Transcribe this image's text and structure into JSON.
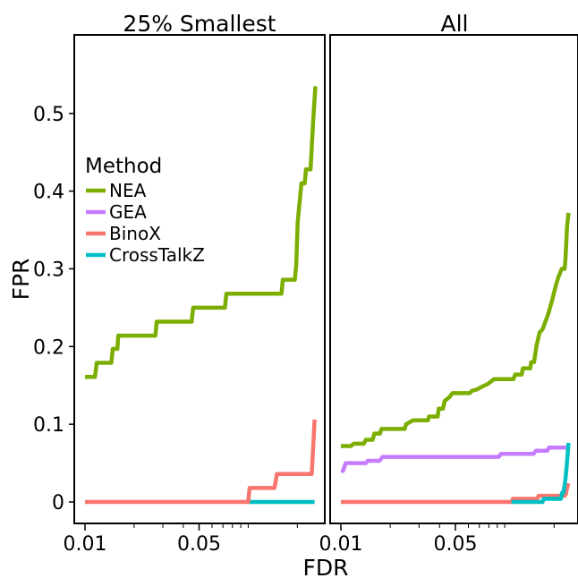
{
  "chart_data": {
    "type": "line",
    "xlabel": "FDR",
    "ylabel": "FPR",
    "x_scale": "log",
    "x_ticks": [
      0.01,
      0.05
    ],
    "x_tick_labels": [
      "0.01",
      "0.05"
    ],
    "y_ticks": [
      0,
      0.1,
      0.2,
      0.3,
      0.4,
      0.5
    ],
    "y_tick_labels": [
      "0",
      "0.1",
      "0.2",
      "0.3",
      "0.4",
      "0.5"
    ],
    "xlim": [
      0.009,
      0.37
    ],
    "ylim": [
      -0.025,
      0.565
    ],
    "grid": false,
    "legend": {
      "title": "Method",
      "placement": "left panel, middle-left",
      "entries": [
        "NEA",
        "GEA",
        "BinoX",
        "CrossTalkZ"
      ]
    },
    "colors": {
      "NEA": "#7CAE00",
      "GEA": "#C77CFF",
      "BinoX": "#F8766D",
      "CrossTalkZ": "#00BFC4"
    },
    "panels": [
      {
        "title": "25% Smallest",
        "series": [
          {
            "name": "NEA",
            "points": [
              [
                0.01,
                0.161
              ],
              [
                0.0115,
                0.161
              ],
              [
                0.0118,
                0.179
              ],
              [
                0.0145,
                0.179
              ],
              [
                0.0148,
                0.197
              ],
              [
                0.0158,
                0.197
              ],
              [
                0.016,
                0.214
              ],
              [
                0.027,
                0.214
              ],
              [
                0.0275,
                0.232
              ],
              [
                0.045,
                0.232
              ],
              [
                0.046,
                0.25
              ],
              [
                0.072,
                0.25
              ],
              [
                0.0735,
                0.268
              ],
              [
                0.16,
                0.268
              ],
              [
                0.163,
                0.286
              ],
              [
                0.193,
                0.286
              ],
              [
                0.197,
                0.305
              ],
              [
                0.201,
                0.36
              ],
              [
                0.212,
                0.41
              ],
              [
                0.222,
                0.41
              ],
              [
                0.226,
                0.428
              ],
              [
                0.241,
                0.428
              ],
              [
                0.25,
                0.49
              ],
              [
                0.258,
                0.535
              ]
            ]
          },
          {
            "name": "CrossTalkZ",
            "points": [
              [
                0.1,
                0
              ],
              [
                0.255,
                0
              ]
            ]
          },
          {
            "name": "BinoX",
            "points": [
              [
                0.01,
                0
              ],
              [
                0.1,
                0
              ],
              [
                0.102,
                0.018
              ],
              [
                0.145,
                0.018
              ],
              [
                0.15,
                0.036
              ],
              [
                0.245,
                0.036
              ],
              [
                0.25,
                0.07
              ],
              [
                0.255,
                0.106
              ]
            ]
          }
        ]
      },
      {
        "title": "All",
        "series": [
          {
            "name": "NEA",
            "points": [
              [
                0.01,
                0.072
              ],
              [
                0.0115,
                0.072
              ],
              [
                0.012,
                0.075
              ],
              [
                0.0138,
                0.075
              ],
              [
                0.0142,
                0.08
              ],
              [
                0.0156,
                0.08
              ],
              [
                0.016,
                0.088
              ],
              [
                0.0173,
                0.088
              ],
              [
                0.0177,
                0.094
              ],
              [
                0.0245,
                0.094
              ],
              [
                0.025,
                0.1
              ],
              [
                0.0275,
                0.105
              ],
              [
                0.034,
                0.105
              ],
              [
                0.0345,
                0.11
              ],
              [
                0.039,
                0.11
              ],
              [
                0.0395,
                0.12
              ],
              [
                0.042,
                0.12
              ],
              [
                0.043,
                0.13
              ],
              [
                0.046,
                0.135
              ],
              [
                0.048,
                0.14
              ],
              [
                0.061,
                0.14
              ],
              [
                0.063,
                0.143
              ],
              [
                0.068,
                0.145
              ],
              [
                0.072,
                0.148
              ],
              [
                0.079,
                0.152
              ],
              [
                0.086,
                0.158
              ],
              [
                0.113,
                0.158
              ],
              [
                0.116,
                0.164
              ],
              [
                0.127,
                0.164
              ],
              [
                0.129,
                0.172
              ],
              [
                0.143,
                0.172
              ],
              [
                0.145,
                0.18
              ],
              [
                0.151,
                0.18
              ],
              [
                0.156,
                0.2
              ],
              [
                0.163,
                0.218
              ],
              [
                0.17,
                0.222
              ],
              [
                0.183,
                0.24
              ],
              [
                0.195,
                0.26
              ],
              [
                0.206,
                0.28
              ],
              [
                0.213,
                0.29
              ],
              [
                0.223,
                0.3
              ],
              [
                0.232,
                0.3
              ],
              [
                0.235,
                0.315
              ],
              [
                0.24,
                0.355
              ],
              [
                0.245,
                0.372
              ]
            ]
          },
          {
            "name": "GEA",
            "points": [
              [
                0.01,
                0.04
              ],
              [
                0.0103,
                0.04
              ],
              [
                0.0107,
                0.05
              ],
              [
                0.0142,
                0.05
              ],
              [
                0.0146,
                0.053
              ],
              [
                0.0172,
                0.053
              ],
              [
                0.018,
                0.058
              ],
              [
                0.092,
                0.058
              ],
              [
                0.095,
                0.062
              ],
              [
                0.15,
                0.062
              ],
              [
                0.155,
                0.066
              ],
              [
                0.182,
                0.066
              ],
              [
                0.186,
                0.07
              ],
              [
                0.245,
                0.07
              ]
            ]
          },
          {
            "name": "BinoX",
            "points": [
              [
                0.01,
                0
              ],
              [
                0.11,
                0
              ],
              [
                0.112,
                0.004
              ],
              [
                0.158,
                0.004
              ],
              [
                0.161,
                0.008
              ],
              [
                0.232,
                0.008
              ],
              [
                0.236,
                0.01
              ],
              [
                0.24,
                0.018
              ],
              [
                0.245,
                0.024
              ]
            ]
          },
          {
            "name": "CrossTalkZ",
            "points": [
              [
                0.11,
                0
              ],
              [
                0.17,
                0
              ],
              [
                0.173,
                0.004
              ],
              [
                0.22,
                0.004
              ],
              [
                0.224,
                0.012
              ],
              [
                0.228,
                0.012
              ],
              [
                0.232,
                0.022
              ],
              [
                0.236,
                0.034
              ],
              [
                0.24,
                0.052
              ],
              [
                0.245,
                0.076
              ]
            ]
          }
        ]
      }
    ]
  }
}
